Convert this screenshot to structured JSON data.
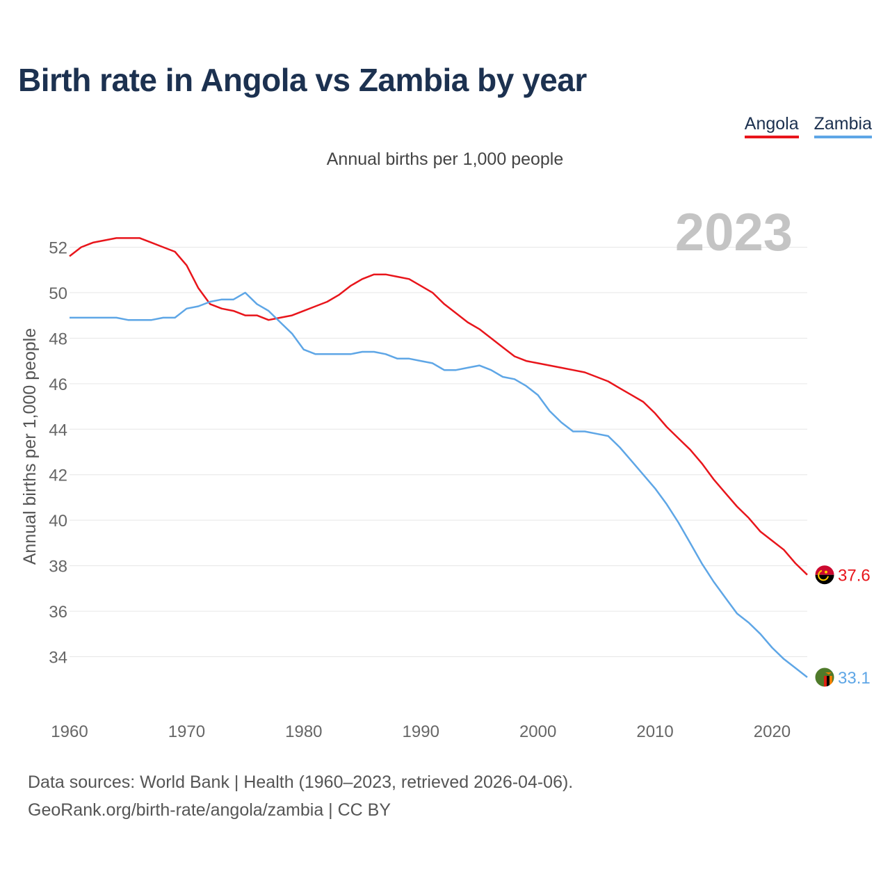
{
  "title": "Birth rate in Angola vs Zambia by year",
  "subtitle": "Annual births per 1,000 people",
  "year_label": "2023",
  "legend": [
    {
      "name": "Angola",
      "color": "#e8151b"
    },
    {
      "name": "Zambia",
      "color": "#5ea6e6"
    }
  ],
  "source": {
    "line1": "Data sources: World Bank | Health (1960–2023, retrieved 2026-04-06).",
    "line2": "GeoRank.org/birth-rate/angola/zambia | CC BY"
  },
  "chart_data": {
    "type": "line",
    "title": "Birth rate in Angola vs Zambia by year",
    "xlabel": "",
    "ylabel": "Annual births per 1,000 people",
    "xlim": [
      1960,
      2023
    ],
    "ylim": [
      32,
      54
    ],
    "x_ticks": [
      1960,
      1970,
      1980,
      1990,
      2000,
      2010,
      2020
    ],
    "y_ticks": [
      34,
      36,
      38,
      40,
      42,
      44,
      46,
      48,
      50,
      52
    ],
    "grid": "horizontal",
    "x": [
      1960,
      1961,
      1962,
      1963,
      1964,
      1965,
      1966,
      1967,
      1968,
      1969,
      1970,
      1971,
      1972,
      1973,
      1974,
      1975,
      1976,
      1977,
      1978,
      1979,
      1980,
      1981,
      1982,
      1983,
      1984,
      1985,
      1986,
      1987,
      1988,
      1989,
      1990,
      1991,
      1992,
      1993,
      1994,
      1995,
      1996,
      1997,
      1998,
      1999,
      2000,
      2001,
      2002,
      2003,
      2004,
      2005,
      2006,
      2007,
      2008,
      2009,
      2010,
      2011,
      2012,
      2013,
      2014,
      2015,
      2016,
      2017,
      2018,
      2019,
      2020,
      2021,
      2022,
      2023
    ],
    "series": [
      {
        "name": "Angola",
        "color": "#e8151b",
        "end_label": "37.6",
        "values": [
          51.6,
          52.0,
          52.2,
          52.3,
          52.4,
          52.4,
          52.4,
          52.2,
          52.0,
          51.8,
          51.2,
          50.2,
          49.5,
          49.3,
          49.2,
          49.0,
          49.0,
          48.8,
          48.9,
          49.0,
          49.2,
          49.4,
          49.6,
          49.9,
          50.3,
          50.6,
          50.8,
          50.8,
          50.7,
          50.6,
          50.3,
          50.0,
          49.5,
          49.1,
          48.7,
          48.4,
          48.0,
          47.6,
          47.2,
          47.0,
          46.9,
          46.8,
          46.7,
          46.6,
          46.5,
          46.3,
          46.1,
          45.8,
          45.5,
          45.2,
          44.7,
          44.1,
          43.6,
          43.1,
          42.5,
          41.8,
          41.2,
          40.6,
          40.1,
          39.5,
          39.1,
          38.7,
          38.1,
          37.6
        ]
      },
      {
        "name": "Zambia",
        "color": "#5ea6e6",
        "end_label": "33.1",
        "values": [
          48.9,
          48.9,
          48.9,
          48.9,
          48.9,
          48.8,
          48.8,
          48.8,
          48.9,
          48.9,
          49.3,
          49.4,
          49.6,
          49.7,
          49.7,
          50.0,
          49.5,
          49.2,
          48.7,
          48.2,
          47.5,
          47.3,
          47.3,
          47.3,
          47.3,
          47.4,
          47.4,
          47.3,
          47.1,
          47.1,
          47.0,
          46.9,
          46.6,
          46.6,
          46.7,
          46.8,
          46.6,
          46.3,
          46.2,
          45.9,
          45.5,
          44.8,
          44.3,
          43.9,
          43.9,
          43.8,
          43.7,
          43.2,
          42.6,
          42.0,
          41.4,
          40.7,
          39.9,
          39.0,
          38.1,
          37.3,
          36.6,
          35.9,
          35.5,
          35.0,
          34.4,
          33.9,
          33.5,
          33.1
        ]
      }
    ]
  }
}
